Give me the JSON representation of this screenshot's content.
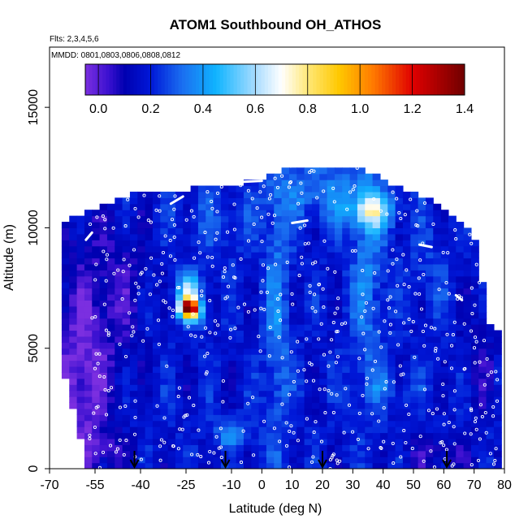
{
  "chart_data": {
    "type": "heatmap",
    "title": "ATOM1 Southbound OH_ATHOS",
    "notes": [
      "Flts: 2,3,4,5,6",
      "MMDD: 0801,0803,0806,0808,0812"
    ],
    "xlabel": "Latitude (deg N)",
    "ylabel": "Altitude (m)",
    "xlim": [
      -70,
      80
    ],
    "ylim": [
      0,
      17500
    ],
    "x_ticks": [
      -70,
      -55,
      -40,
      -25,
      -10,
      0,
      10,
      20,
      30,
      40,
      50,
      60,
      70,
      80
    ],
    "y_ticks": [
      0,
      5000,
      10000,
      15000
    ],
    "colorbar": {
      "min": -0.05,
      "max": 1.4,
      "ticks": [
        0.0,
        0.2,
        0.4,
        0.6,
        0.8,
        1.0,
        1.2,
        1.4
      ],
      "tick_labels": [
        "0.0",
        "0.2",
        "0.4",
        "0.6",
        "0.8",
        "1.0",
        "1.2",
        "1.4"
      ],
      "stops": [
        {
          "v": -0.05,
          "color": "#7b2fe0"
        },
        {
          "v": 0.04,
          "color": "#3a10d0"
        },
        {
          "v": 0.1,
          "color": "#0000b0"
        },
        {
          "v": 0.2,
          "color": "#0018d8"
        },
        {
          "v": 0.32,
          "color": "#1a6ef0"
        },
        {
          "v": 0.45,
          "color": "#10b4ff"
        },
        {
          "v": 0.6,
          "color": "#a8dcff"
        },
        {
          "v": 0.7,
          "color": "#ffffff"
        },
        {
          "v": 0.8,
          "color": "#ffe878"
        },
        {
          "v": 0.92,
          "color": "#ffc800"
        },
        {
          "v": 1.05,
          "color": "#ff7a00"
        },
        {
          "v": 1.2,
          "color": "#e00000"
        },
        {
          "v": 1.4,
          "color": "#700000"
        }
      ]
    },
    "profile": [
      {
        "x": -70,
        "top": 0,
        "bottom": 0
      },
      {
        "x": -65,
        "top": 10300,
        "bottom": 3800
      },
      {
        "x": -57,
        "top": 10700,
        "bottom": 0
      },
      {
        "x": -50,
        "top": 11000,
        "bottom": 0
      },
      {
        "x": -40,
        "top": 11500,
        "bottom": 0
      },
      {
        "x": -25,
        "top": 11600,
        "bottom": 0
      },
      {
        "x": -10,
        "top": 11800,
        "bottom": 0
      },
      {
        "x": 0,
        "top": 12000,
        "bottom": 0
      },
      {
        "x": 10,
        "top": 12600,
        "bottom": 0
      },
      {
        "x": 20,
        "top": 12600,
        "bottom": 0
      },
      {
        "x": 30,
        "top": 12600,
        "bottom": 0
      },
      {
        "x": 40,
        "top": 12000,
        "bottom": 0
      },
      {
        "x": 50,
        "top": 11500,
        "bottom": 0
      },
      {
        "x": 60,
        "top": 10800,
        "bottom": 0
      },
      {
        "x": 70,
        "top": 9800,
        "bottom": 0
      },
      {
        "x": 75,
        "top": 6000,
        "bottom": 0
      },
      {
        "x": 79,
        "top": 5800,
        "bottom": 0
      }
    ],
    "base_value": 0.18,
    "features": [
      {
        "x": -58,
        "y": 5500,
        "sx": 8,
        "sy": 4000,
        "value": -0.08
      },
      {
        "x": -60,
        "y": 3000,
        "sx": 6,
        "sy": 2500,
        "value": -0.1
      },
      {
        "x": -45,
        "y": 7500,
        "sx": 6,
        "sy": 2000,
        "value": -0.05
      },
      {
        "x": -52,
        "y": 800,
        "sx": 6,
        "sy": 500,
        "value": -0.05
      },
      {
        "x": 58,
        "y": 600,
        "sx": 8,
        "sy": 500,
        "value": -0.08
      },
      {
        "x": 72,
        "y": 5000,
        "sx": 4,
        "sy": 2000,
        "value": -0.05
      },
      {
        "x": -24,
        "y": 6700,
        "sx": 2.2,
        "sy": 250,
        "value": 1.15
      },
      {
        "x": -24,
        "y": 7400,
        "sx": 3,
        "sy": 500,
        "value": 0.45
      },
      {
        "x": -22,
        "y": 6300,
        "sx": 3,
        "sy": 300,
        "value": 0.3
      },
      {
        "x": 36,
        "y": 10700,
        "sx": 5,
        "sy": 500,
        "value": 0.42
      },
      {
        "x": 35,
        "y": 8000,
        "sx": 4,
        "sy": 3500,
        "value": 0.2
      },
      {
        "x": 5,
        "y": 6500,
        "sx": 3,
        "sy": 4500,
        "value": 0.2
      },
      {
        "x": -15,
        "y": 10300,
        "sx": 9,
        "sy": 900,
        "value": 0.12
      },
      {
        "x": 40,
        "y": 3300,
        "sx": 9,
        "sy": 500,
        "value": 0.12
      },
      {
        "x": -10,
        "y": 1500,
        "sx": 4,
        "sy": 400,
        "value": 0.25
      },
      {
        "x": 20,
        "y": 11500,
        "sx": 12,
        "sy": 900,
        "value": 0.2
      },
      {
        "x": 55,
        "y": 8500,
        "sx": 6,
        "sy": 1500,
        "value": 0.1
      }
    ],
    "arrows_x": [
      -42,
      -12,
      20,
      61
    ],
    "tracks": [
      {
        "x": [
          -58,
          -56
        ],
        "y": [
          9500,
          9800
        ]
      },
      {
        "x": [
          -30,
          -26
        ],
        "y": [
          11000,
          11300
        ]
      },
      {
        "x": [
          -8,
          0
        ],
        "y": [
          11900,
          11950
        ]
      },
      {
        "x": [
          10,
          15
        ],
        "y": [
          10200,
          10300
        ]
      },
      {
        "x": [
          25,
          28
        ],
        "y": [
          13000,
          13100
        ]
      },
      {
        "x": [
          52,
          56
        ],
        "y": [
          9300,
          9200
        ]
      },
      {
        "x": [
          64,
          66
        ],
        "y": [
          7200,
          7000
        ]
      }
    ]
  }
}
